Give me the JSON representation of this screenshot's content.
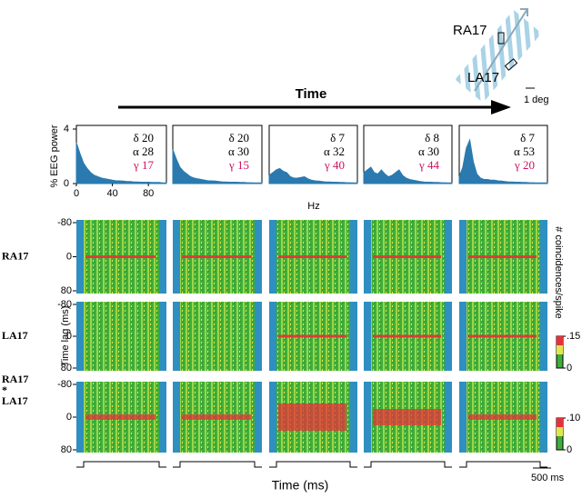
{
  "inset": {
    "labels": [
      "RA17",
      "LA17"
    ],
    "scale": "1 deg"
  },
  "time_arrow": "Time",
  "spectra": {
    "y_label": "% EEG power",
    "x_label": "Hz",
    "color": "#2a7ab0",
    "xlim": [
      0,
      100
    ],
    "xticks": [
      0,
      40,
      80
    ],
    "ylim": [
      0,
      4
    ],
    "yticks": [
      0,
      4
    ],
    "hz": [
      0,
      4,
      8,
      12,
      16,
      20,
      24,
      28,
      32,
      36,
      40,
      44,
      48,
      52,
      56,
      60,
      64,
      68,
      72,
      76,
      80,
      84,
      88,
      92,
      96,
      100
    ],
    "panels": [
      {
        "delta": "δ 20",
        "alpha": "α 28",
        "gamma": "γ 17",
        "values": [
          3.0,
          2.2,
          1.5,
          1.1,
          0.8,
          0.6,
          0.5,
          0.4,
          0.35,
          0.3,
          0.25,
          0.2,
          0.2,
          0.18,
          0.15,
          0.15,
          0.12,
          0.12,
          0.1,
          0.1,
          0.1,
          0.08,
          0.08,
          0.08,
          0.05,
          0.05
        ]
      },
      {
        "delta": "δ 20",
        "alpha": "α 30",
        "gamma": "γ 15",
        "values": [
          2.5,
          1.8,
          1.2,
          0.9,
          0.7,
          0.5,
          0.4,
          0.35,
          0.3,
          0.25,
          0.2,
          0.2,
          0.18,
          0.15,
          0.12,
          0.12,
          0.1,
          0.1,
          0.1,
          0.08,
          0.08,
          0.06,
          0.06,
          0.05,
          0.05,
          0.05
        ]
      },
      {
        "delta": "δ 7",
        "alpha": "α 32",
        "gamma": "γ 40",
        "values": [
          0.6,
          0.8,
          1.0,
          1.1,
          0.9,
          0.8,
          0.5,
          0.4,
          0.4,
          0.45,
          0.5,
          0.35,
          0.25,
          0.2,
          0.18,
          0.15,
          0.12,
          0.12,
          0.1,
          0.1,
          0.08,
          0.08,
          0.06,
          0.06,
          0.05,
          0.05
        ]
      },
      {
        "delta": "δ 8",
        "alpha": "α 30",
        "gamma": "γ 44",
        "values": [
          0.8,
          1.0,
          1.2,
          0.8,
          0.7,
          1.0,
          0.7,
          0.5,
          0.6,
          0.8,
          1.0,
          0.6,
          0.4,
          0.3,
          0.25,
          0.2,
          0.15,
          0.12,
          0.1,
          0.1,
          0.08,
          0.08,
          0.06,
          0.06,
          0.05,
          0.05
        ]
      },
      {
        "delta": "δ 7",
        "alpha": "α 53",
        "gamma": "γ 20",
        "values": [
          0.5,
          1.2,
          2.6,
          3.2,
          1.6,
          0.7,
          0.4,
          0.3,
          0.3,
          0.25,
          0.25,
          0.2,
          0.18,
          0.15,
          0.12,
          0.12,
          0.1,
          0.1,
          0.08,
          0.08,
          0.06,
          0.06,
          0.05,
          0.05,
          0.05,
          0.05
        ]
      }
    ]
  },
  "correlograms": {
    "row_labels": [
      [
        "RA17"
      ],
      [
        "LA17"
      ],
      [
        "RA17",
        "*",
        "LA17"
      ]
    ],
    "y_label": "Time lag (ms)",
    "ylim": [
      -80,
      80
    ],
    "yticks": [
      -80,
      0,
      80
    ],
    "colorbar_label": "# coincidences/spike",
    "colorbars": [
      [
        {
          "value": 0.15,
          "label": ".15"
        },
        0
      ],
      [
        {
          "value": 0.1,
          "label": ".10"
        },
        0
      ]
    ]
  },
  "scale_bar": "500 ms",
  "x_label": "Time  (ms)"
}
